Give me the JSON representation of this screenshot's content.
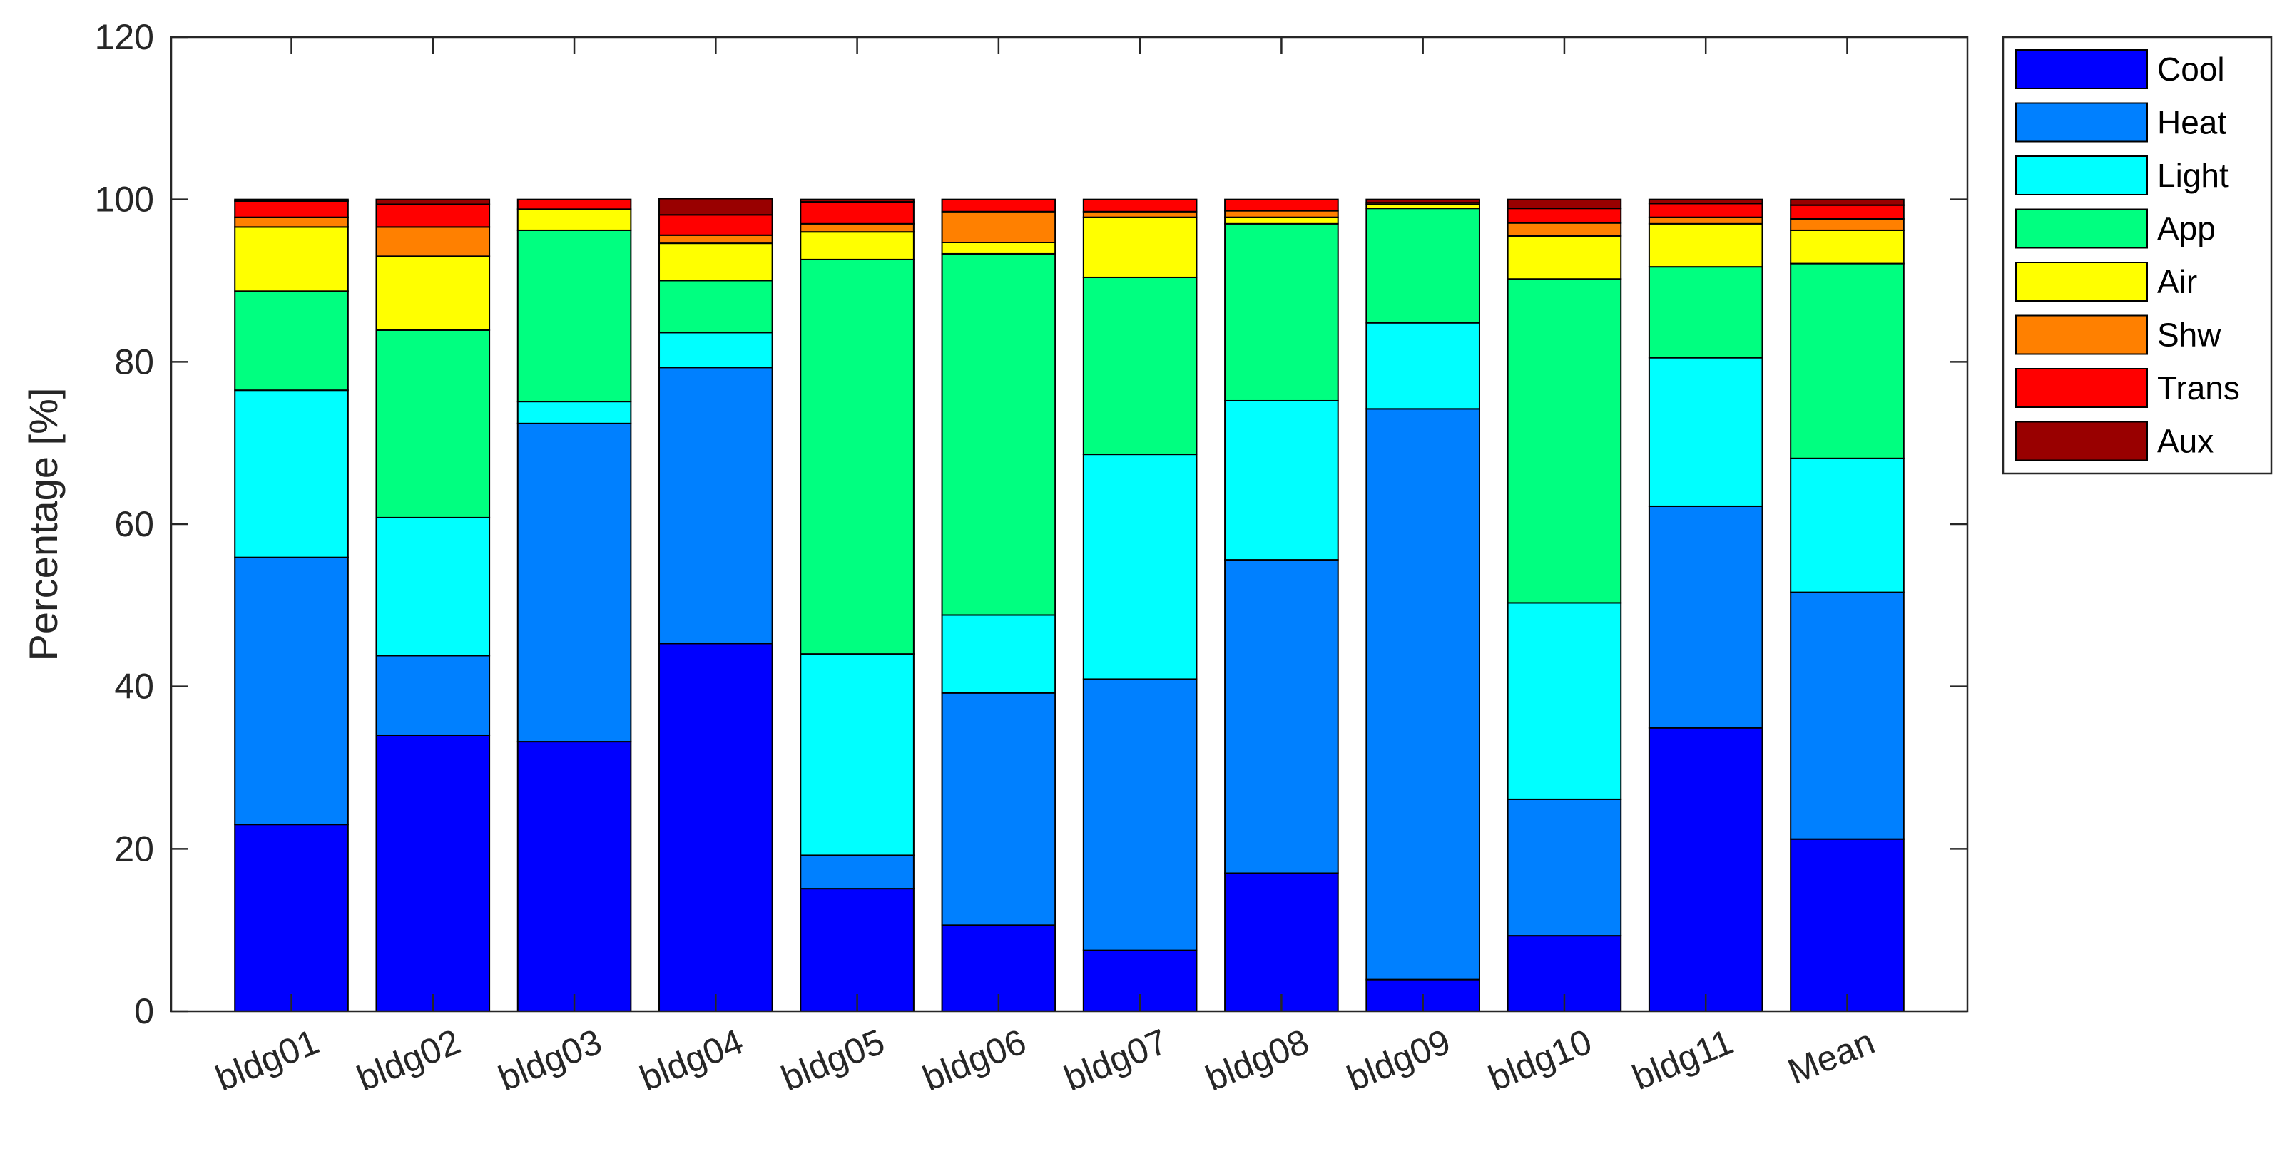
{
  "chart_data": {
    "type": "bar",
    "stacked": true,
    "ylabel": "Percentage [%]",
    "xlabel": "",
    "ylim": [
      0,
      120
    ],
    "yticks": [
      0,
      20,
      40,
      60,
      80,
      100,
      120
    ],
    "grid": false,
    "legend_position": "outside-top-right",
    "categories": [
      "bldg01",
      "bldg02",
      "bldg03",
      "bldg04",
      "bldg05",
      "bldg06",
      "bldg07",
      "bldg08",
      "bldg09",
      "bldg10",
      "bldg11",
      "Mean"
    ],
    "series": [
      {
        "name": "Cool",
        "color": "#0000ff",
        "values": [
          23.0,
          34.0,
          33.2,
          45.3,
          15.1,
          10.6,
          7.5,
          17.0,
          3.9,
          9.3,
          34.9,
          21.2
        ]
      },
      {
        "name": "Heat",
        "color": "#0080ff",
        "values": [
          32.9,
          9.8,
          39.2,
          34.0,
          4.1,
          28.6,
          33.4,
          38.6,
          70.3,
          16.8,
          27.3,
          30.4
        ]
      },
      {
        "name": "Light",
        "color": "#00ffff",
        "values": [
          20.6,
          17.0,
          2.7,
          4.3,
          24.8,
          9.6,
          27.7,
          19.6,
          10.6,
          24.2,
          18.3,
          16.5
        ]
      },
      {
        "name": "App",
        "color": "#00ff80",
        "values": [
          12.2,
          23.1,
          21.1,
          6.4,
          48.6,
          44.5,
          21.8,
          21.8,
          14.1,
          39.9,
          11.2,
          24.0
        ]
      },
      {
        "name": "Air",
        "color": "#ffff00",
        "values": [
          7.9,
          9.1,
          2.6,
          4.6,
          3.4,
          1.4,
          7.4,
          0.8,
          0.5,
          5.3,
          5.3,
          4.1
        ]
      },
      {
        "name": "Shw",
        "color": "#ff8000",
        "values": [
          1.2,
          3.6,
          0.0,
          1.0,
          1.0,
          3.8,
          0.7,
          0.8,
          0.2,
          1.6,
          0.8,
          1.4
        ]
      },
      {
        "name": "Trans",
        "color": "#ff0000",
        "values": [
          2.0,
          2.8,
          1.2,
          2.5,
          2.7,
          1.5,
          1.5,
          1.4,
          0.0,
          1.8,
          1.7,
          1.7
        ]
      },
      {
        "name": "Aux",
        "color": "#990000",
        "values": [
          0.2,
          0.6,
          0.0,
          2.0,
          0.3,
          0.0,
          0.0,
          0.0,
          0.4,
          1.1,
          0.5,
          0.7
        ]
      }
    ]
  }
}
